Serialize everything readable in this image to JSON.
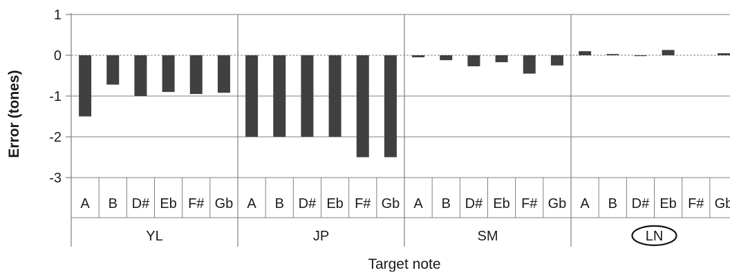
{
  "chart_data": {
    "type": "bar",
    "groups": [
      {
        "name": "YL",
        "categories": [
          "A",
          "B",
          "D#",
          "Eb",
          "F#",
          "Gb"
        ],
        "values": [
          -1.5,
          -0.72,
          -1.0,
          -0.9,
          -0.95,
          -0.92
        ]
      },
      {
        "name": "JP",
        "categories": [
          "A",
          "B",
          "D#",
          "Eb",
          "F#",
          "Gb"
        ],
        "values": [
          -2.0,
          -2.0,
          -2.0,
          -2.0,
          -2.5,
          -2.5
        ]
      },
      {
        "name": "SM",
        "categories": [
          "A",
          "B",
          "D#",
          "Eb",
          "F#",
          "Gb"
        ],
        "values": [
          -0.05,
          -0.12,
          -0.27,
          -0.17,
          -0.45,
          -0.25
        ]
      },
      {
        "name": "LN",
        "categories": [
          "A",
          "B",
          "D#",
          "Eb",
          "F#",
          "Gb"
        ],
        "values": [
          0.1,
          0.03,
          -0.02,
          0.13,
          0.0,
          0.05
        ]
      }
    ],
    "yticks": [
      1,
      0,
      -1,
      -2,
      -3
    ],
    "ylim": [
      -3,
      1
    ],
    "ylabel": "Error (tones)",
    "xlabel": "Target note",
    "highlighted_group": "LN",
    "grid": true,
    "bar_color": "#404040",
    "grid_color": "#7f7f7f"
  }
}
